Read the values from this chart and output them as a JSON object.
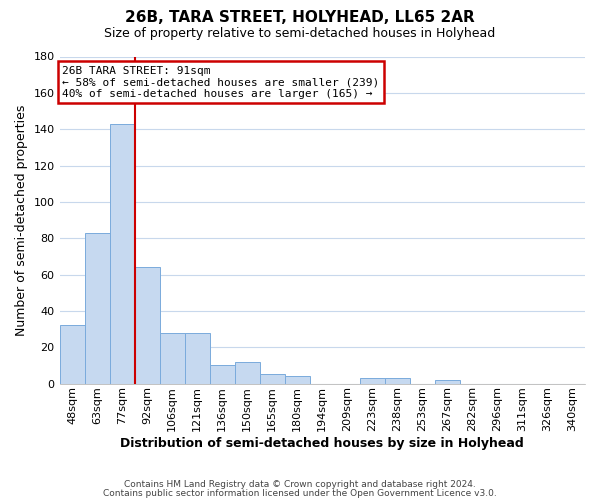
{
  "title": "26B, TARA STREET, HOLYHEAD, LL65 2AR",
  "subtitle": "Size of property relative to semi-detached houses in Holyhead",
  "xlabel": "Distribution of semi-detached houses by size in Holyhead",
  "ylabel": "Number of semi-detached properties",
  "bin_labels": [
    "48sqm",
    "63sqm",
    "77sqm",
    "92sqm",
    "106sqm",
    "121sqm",
    "136sqm",
    "150sqm",
    "165sqm",
    "180sqm",
    "194sqm",
    "209sqm",
    "223sqm",
    "238sqm",
    "253sqm",
    "267sqm",
    "282sqm",
    "296sqm",
    "311sqm",
    "326sqm",
    "340sqm"
  ],
  "bar_values": [
    32,
    83,
    143,
    64,
    28,
    28,
    10,
    12,
    5,
    4,
    0,
    0,
    3,
    3,
    0,
    2,
    0,
    0,
    0,
    0,
    0
  ],
  "bar_color": "#c6d9f0",
  "bar_edge_color": "#7aabdc",
  "annotation_text_line1": "26B TARA STREET: 91sqm",
  "annotation_text_line2": "← 58% of semi-detached houses are smaller (239)",
  "annotation_text_line3": "40% of semi-detached houses are larger (165) →",
  "annotation_box_color": "#ffffff",
  "annotation_box_edge": "#cc0000",
  "vline_color": "#cc0000",
  "ylim": [
    0,
    180
  ],
  "yticks": [
    0,
    20,
    40,
    60,
    80,
    100,
    120,
    140,
    160,
    180
  ],
  "footer_line1": "Contains HM Land Registry data © Crown copyright and database right 2024.",
  "footer_line2": "Contains public sector information licensed under the Open Government Licence v3.0.",
  "background_color": "#ffffff",
  "grid_color": "#c8d8ec",
  "title_fontsize": 11,
  "subtitle_fontsize": 9,
  "axis_label_fontsize": 9,
  "tick_fontsize": 8,
  "annotation_fontsize": 8
}
